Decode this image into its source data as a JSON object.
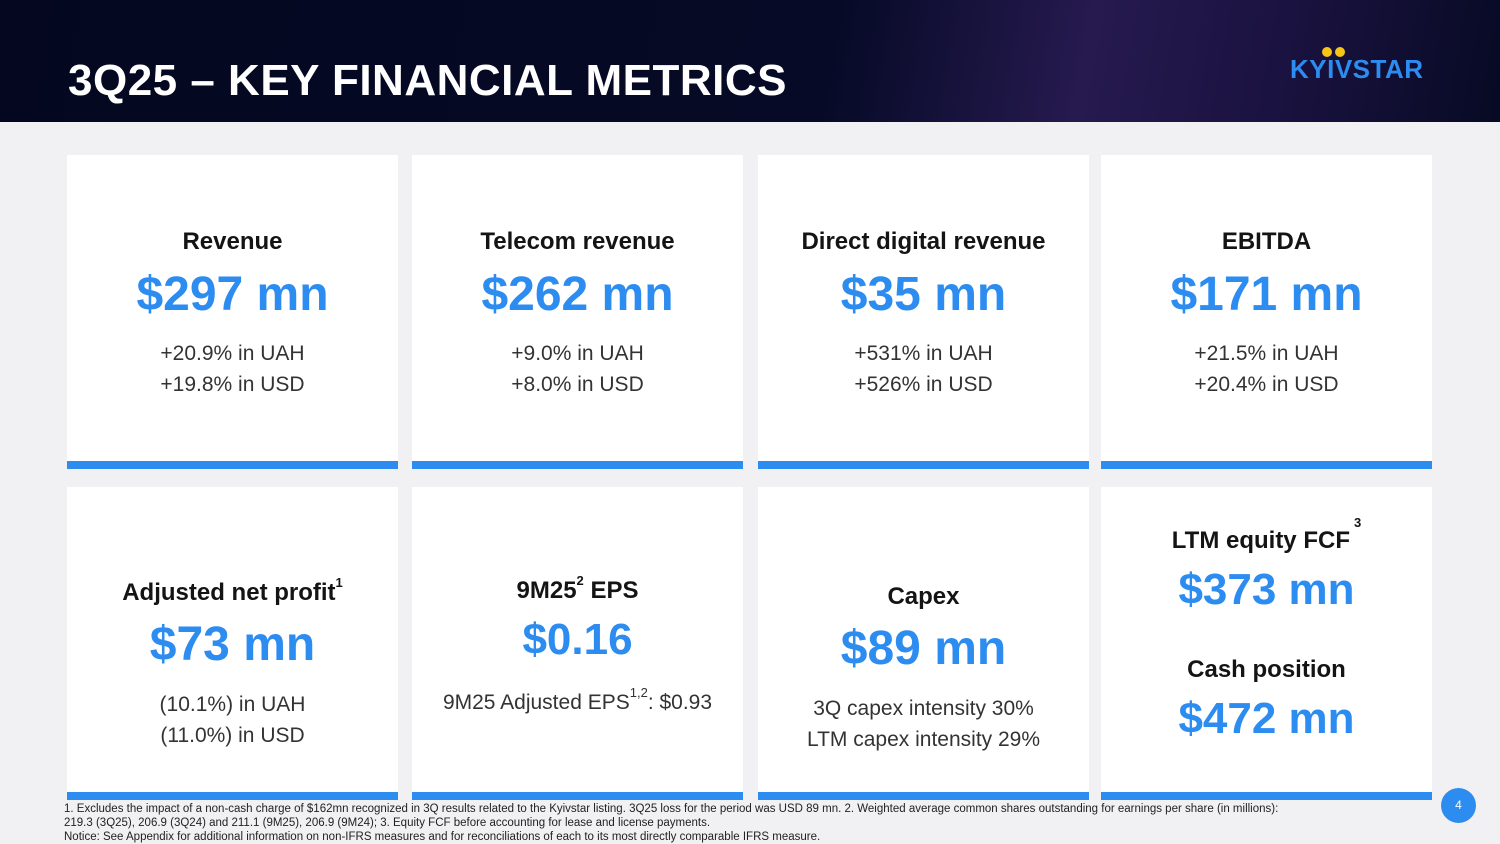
{
  "header": {
    "title": "3Q25 – KEY FINANCIAL METRICS",
    "logo_text": "KYIVSTAR"
  },
  "cards": [
    {
      "label": "Revenue",
      "value": "$297 mn",
      "line1": "+20.9% in UAH",
      "line2": "+19.8% in USD"
    },
    {
      "label": "Telecom revenue",
      "value": "$262 mn",
      "line1": "+9.0% in UAH",
      "line2": "+8.0% in USD"
    },
    {
      "label": "Direct digital revenue",
      "value": "$35 mn",
      "line1": "+531% in UAH",
      "line2": "+526% in USD"
    },
    {
      "label": "EBITDA",
      "value": "$171 mn",
      "line1": "+21.5% in UAH",
      "line2": "+20.4% in USD"
    },
    {
      "label": "Adjusted net profit",
      "sup": "1",
      "value": "$73 mn",
      "line1": "(10.1%) in UAH",
      "line2": "(11.0%) in USD"
    },
    {
      "label_pre": "9M25",
      "label_sup": "2",
      "label_post": " EPS",
      "value": "$0.16",
      "line_pre": "9M25 Adjusted EPS",
      "line_sup": "1,2",
      "line_post": ": $0.93"
    },
    {
      "label": "Capex",
      "value": "$89 mn",
      "line1": "3Q capex intensity 30%",
      "line2": "LTM capex intensity 29%"
    },
    {
      "label": "LTM equity FCF",
      "sup": "3",
      "value": "$373 mn",
      "label2": "Cash position",
      "value2": "$472 mn"
    }
  ],
  "footnotes": {
    "line1": "1. Excludes the impact of a non-cash charge of $162mn recognized in 3Q results related to the Kyivstar listing. 3Q25 loss for the period was USD 89 mn. 2. Weighted average common shares outstanding for earnings per share (in millions):",
    "line2": "219.3 (3Q25), 206.9 (3Q24) and 211.1 (9M25), 206.9 (9M24); 3. Equity FCF before accounting for lease and license payments.",
    "line3": "Notice: See Appendix for additional information on non-IFRS measures and for reconciliations of each to its most directly comparable IFRS measure."
  },
  "page_number": "4",
  "colors": {
    "accent": "#2d8cf0",
    "header_bg": "#04071f",
    "logo_dots": "#f5c518"
  }
}
